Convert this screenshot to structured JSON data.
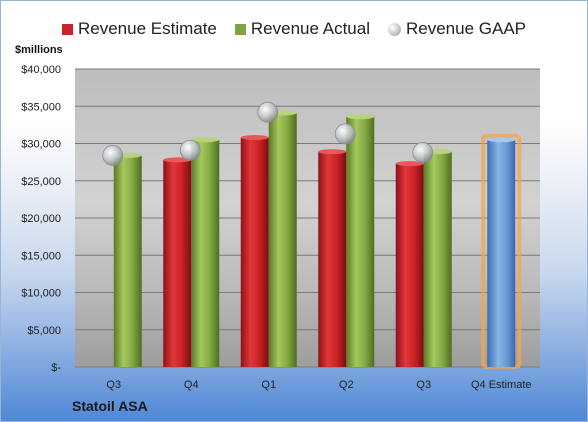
{
  "chart_data": {
    "type": "bar",
    "categories": [
      "Q3",
      "Q4",
      "Q1",
      "Q2",
      "Q3",
      "Q4 Estimate"
    ],
    "series": [
      {
        "name": "Revenue Estimate",
        "values": [
          null,
          27800,
          30800,
          28900,
          27300,
          null
        ],
        "color": "#c8242a"
      },
      {
        "name": "Revenue Actual",
        "values": [
          28400,
          30500,
          34100,
          33600,
          28900,
          null
        ],
        "color": "#7fa43e"
      },
      {
        "name": "Revenue GAAP",
        "values": [
          28400,
          29100,
          34200,
          31300,
          28800,
          null
        ],
        "color": "#c0c4c9"
      }
    ],
    "forecast": {
      "category": "Q4 Estimate",
      "value": 30500,
      "color": "#5b8fd0",
      "glow": "#f6a44c"
    },
    "ylabel": "$millions",
    "ylim": [
      0,
      40000
    ],
    "yticks": [
      0,
      5000,
      10000,
      15000,
      20000,
      25000,
      30000,
      35000,
      40000
    ],
    "ytick_labels": [
      "$-",
      "$5,000",
      "$10,000",
      "$15,000",
      "$20,000",
      "$25,000",
      "$30,000",
      "$35,000",
      "$40,000"
    ],
    "grid": true,
    "legend_position": "top"
  },
  "footer": {
    "company": "Statoil ASA"
  }
}
